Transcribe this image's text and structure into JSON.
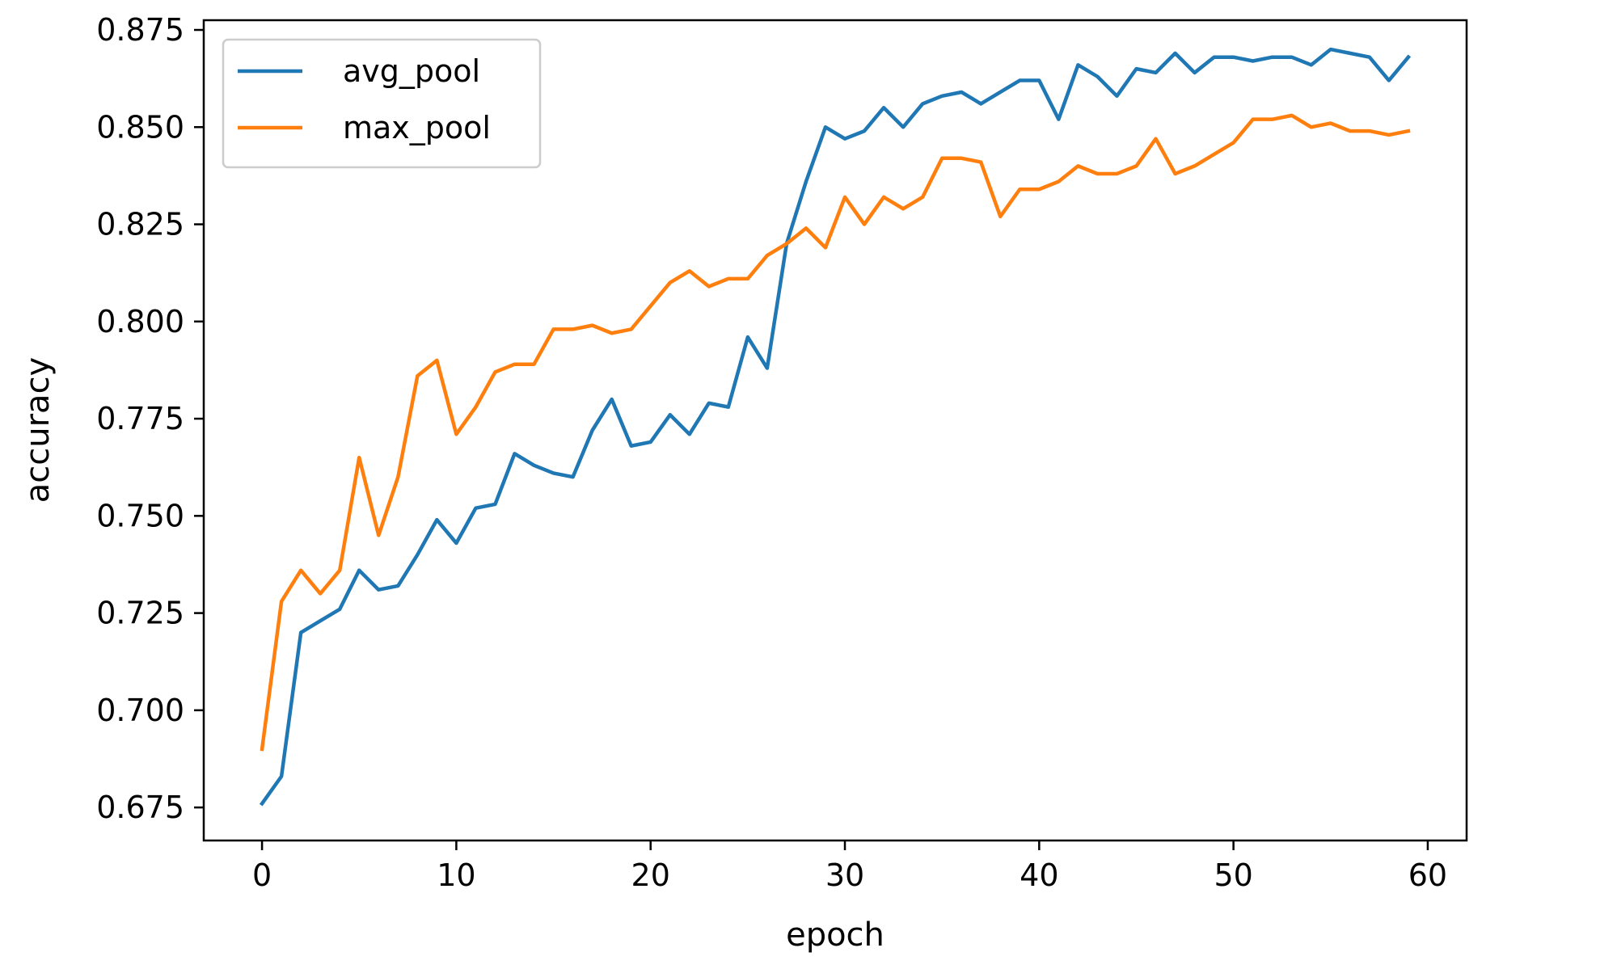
{
  "chart_data": {
    "type": "line",
    "xlabel": "epoch",
    "ylabel": "accuracy",
    "xlim": [
      -3,
      62
    ],
    "ylim": [
      0.6665,
      0.8775
    ],
    "xticks": [
      0,
      10,
      20,
      30,
      40,
      50,
      60
    ],
    "yticks": [
      0.675,
      0.7,
      0.725,
      0.75,
      0.775,
      0.8,
      0.825,
      0.85,
      0.875
    ],
    "grid": false,
    "legend_position": "top-left",
    "series": [
      {
        "name": "avg_pool",
        "color": "#1f77b4",
        "values": [
          0.676,
          0.683,
          0.72,
          0.723,
          0.726,
          0.736,
          0.731,
          0.732,
          0.74,
          0.749,
          0.743,
          0.752,
          0.753,
          0.766,
          0.763,
          0.761,
          0.76,
          0.772,
          0.78,
          0.768,
          0.769,
          0.776,
          0.771,
          0.779,
          0.778,
          0.796,
          0.788,
          0.82,
          0.836,
          0.85,
          0.847,
          0.849,
          0.855,
          0.85,
          0.856,
          0.858,
          0.859,
          0.856,
          0.859,
          0.862,
          0.862,
          0.852,
          0.866,
          0.863,
          0.858,
          0.865,
          0.864,
          0.869,
          0.864,
          0.868,
          0.868,
          0.867,
          0.868,
          0.868,
          0.866,
          0.87,
          0.869,
          0.868,
          0.862,
          0.868
        ]
      },
      {
        "name": "max_pool",
        "color": "#ff7f0e",
        "values": [
          0.69,
          0.728,
          0.736,
          0.73,
          0.736,
          0.765,
          0.745,
          0.76,
          0.786,
          0.79,
          0.771,
          0.778,
          0.787,
          0.789,
          0.789,
          0.798,
          0.798,
          0.799,
          0.797,
          0.798,
          0.804,
          0.81,
          0.813,
          0.809,
          0.811,
          0.811,
          0.817,
          0.82,
          0.824,
          0.819,
          0.832,
          0.825,
          0.832,
          0.829,
          0.832,
          0.842,
          0.842,
          0.841,
          0.827,
          0.834,
          0.834,
          0.836,
          0.84,
          0.838,
          0.838,
          0.84,
          0.847,
          0.838,
          0.84,
          0.843,
          0.846,
          0.852,
          0.852,
          0.853,
          0.85,
          0.851,
          0.849,
          0.849,
          0.848,
          0.849
        ]
      }
    ]
  }
}
